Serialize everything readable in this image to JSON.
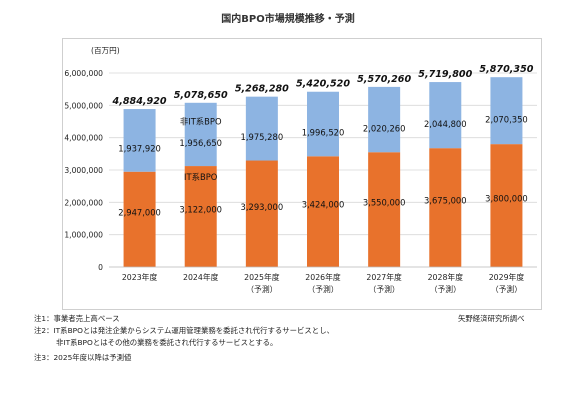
{
  "page": {
    "title": "国内BPO市場規模推移・予測",
    "notes": [
      "注1：事業者売上高ベース",
      "注2：IT系BPOとは発注企業からシステム運用管理業務を委託され代行するサービスとし、",
      "非IT系BPOとはその他の業務を委託され代行するサービスとする。",
      "注3：2025年度以降は予測値"
    ],
    "source": "矢野経済研究所調べ"
  },
  "chart_data": {
    "type": "bar",
    "stacked": true,
    "unit_label": "(百万円)",
    "categories": [
      [
        "2023年度",
        ""
      ],
      [
        "2024年度",
        ""
      ],
      [
        "2025年度",
        "（予測）"
      ],
      [
        "2026年度",
        "（予測）"
      ],
      [
        "2027年度",
        "（予測）"
      ],
      [
        "2028年度",
        "（予測）"
      ],
      [
        "2029年度",
        "（予測）"
      ]
    ],
    "ylim": [
      0,
      6000000
    ],
    "yticks": [
      "0",
      "1,000,000",
      "2,000,000",
      "3,000,000",
      "4,000,000",
      "5,000,000",
      "6,000,000"
    ],
    "grid": true,
    "series": [
      {
        "name": "IT系BPO",
        "color": "#e8722c",
        "values": [
          2947000,
          3122000,
          3293000,
          3424000,
          3550000,
          3675000,
          3800000
        ],
        "labels": [
          "2,947,000",
          "3,122,000",
          "3,293,000",
          "3,424,000",
          "3,550,000",
          "3,675,000",
          "3,800,000"
        ]
      },
      {
        "name": "非IT系BPO",
        "color": "#8db4e2",
        "values": [
          1937920,
          1956650,
          1975280,
          1996520,
          2020260,
          2044800,
          2070350
        ],
        "labels": [
          "1,937,920",
          "1,956,650",
          "1,975,280",
          "1,996,520",
          "2,020,260",
          "2,044,800",
          "2,070,350"
        ]
      }
    ],
    "totals": [
      4884920,
      5078650,
      5268280,
      5420520,
      5570260,
      5719800,
      5870350
    ],
    "total_labels": [
      "4,884,920",
      "5,078,650",
      "5,268,280",
      "5,420,520",
      "5,570,260",
      "5,719,800",
      "5,870,350"
    ]
  }
}
